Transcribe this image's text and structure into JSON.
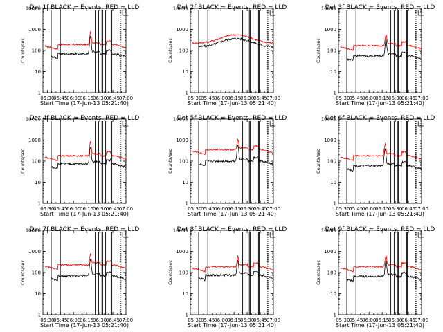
{
  "chart_data": [
    {
      "type": "line",
      "title": "Det 1f BLACK = Events, RED = LLD",
      "xlabel": "Start Time (17-Jun-13 05:21:40)",
      "ylabel": "Counts/sec",
      "yscale": "log",
      "ylim": [
        1,
        10000
      ],
      "xlim": [
        "05:25",
        "07:00"
      ],
      "x_ticks": [
        "05:30",
        "05:45",
        "06:00",
        "06:15",
        "06:30",
        "06:45",
        "07:00"
      ],
      "y_ticks": [
        "1",
        "10",
        "100",
        "1000",
        "10000"
      ],
      "colors": {
        "events": "#000000",
        "lld": "#ff0000"
      },
      "series_data": {
        "events_base": 70,
        "lld_base": 190,
        "peak_x": 0.57,
        "events_peak": 380,
        "lld_peak": 600
      },
      "shape": "flat"
    },
    {
      "type": "line",
      "title": "Det 2f BLACK = Events, RED = LLD",
      "xlabel": "Start Time (17-Jun-13 05:21:40)",
      "ylabel": "Counts/sec",
      "yscale": "log",
      "ylim": [
        1,
        10000
      ],
      "xlim": [
        "05:25",
        "07:00"
      ],
      "x_ticks": [
        "05:30",
        "05:45",
        "06:00",
        "06:15",
        "06:30",
        "06:45",
        "07:00"
      ],
      "y_ticks": [
        "1",
        "10",
        "100",
        "1000",
        "10000"
      ],
      "colors": {
        "events": "#000000",
        "lld": "#ff0000"
      },
      "series_data": {
        "events_base": 200,
        "lld_base": 300,
        "peak_x": 0.55,
        "events_peak": 450,
        "lld_peak": 700
      },
      "shape": "hump"
    },
    {
      "type": "line",
      "title": "Det 3f BLACK = Events, RED = LLD",
      "xlabel": "Start Time (17-Jun-13 05:21:40)",
      "ylabel": "Counts/sec",
      "yscale": "log",
      "ylim": [
        1,
        10000
      ],
      "xlim": [
        "05:25",
        "07:00"
      ],
      "x_ticks": [
        "05:30",
        "05:45",
        "06:00",
        "06:15",
        "06:30",
        "06:45",
        "07:00"
      ],
      "y_ticks": [
        "1",
        "10",
        "100",
        "1000",
        "10000"
      ],
      "colors": {
        "events": "#000000",
        "lld": "#ff0000"
      },
      "series_data": {
        "events_base": 55,
        "lld_base": 170,
        "peak_x": 0.57,
        "events_peak": 280,
        "lld_peak": 500
      },
      "shape": "flat"
    },
    {
      "type": "line",
      "title": "Det 4f BLACK = Events, RED = LLD",
      "xlabel": "Start Time (17-Jun-13 05:21:40)",
      "ylabel": "Counts/sec",
      "yscale": "log",
      "ylim": [
        1,
        10000
      ],
      "xlim": [
        "05:25",
        "07:00"
      ],
      "x_ticks": [
        "05:30",
        "05:45",
        "06:00",
        "06:15",
        "06:30",
        "06:45",
        "07:00"
      ],
      "y_ticks": [
        "1",
        "10",
        "100",
        "1000",
        "10000"
      ],
      "colors": {
        "events": "#000000",
        "lld": "#ff0000"
      },
      "series_data": {
        "events_base": 75,
        "lld_base": 180,
        "peak_x": 0.57,
        "events_peak": 400,
        "lld_peak": 650
      },
      "shape": "flat"
    },
    {
      "type": "line",
      "title": "Det 5f BLACK = Events, RED = LLD",
      "xlabel": "Start Time (17-Jun-13 05:21:40)",
      "ylabel": "Counts/sec",
      "yscale": "log",
      "ylim": [
        1,
        10000
      ],
      "xlim": [
        "05:25",
        "07:00"
      ],
      "x_ticks": [
        "05:30",
        "05:45",
        "06:00",
        "06:15",
        "06:30",
        "06:45",
        "07:00"
      ],
      "y_ticks": [
        "1",
        "10",
        "100",
        "1000",
        "10000"
      ],
      "colors": {
        "events": "#000000",
        "lld": "#ff0000"
      },
      "series_data": {
        "events_base": 100,
        "lld_base": 350,
        "peak_x": 0.57,
        "events_peak": 500,
        "lld_peak": 900
      },
      "shape": "flat"
    },
    {
      "type": "line",
      "title": "Det 6f BLACK = Events, RED = LLD",
      "xlabel": "Start Time (17-Jun-13 05:21:40)",
      "ylabel": "Counts/sec",
      "yscale": "log",
      "ylim": [
        1,
        10000
      ],
      "xlim": [
        "05:25",
        "07:00"
      ],
      "x_ticks": [
        "05:30",
        "05:45",
        "06:00",
        "06:15",
        "06:30",
        "06:45",
        "07:00"
      ],
      "y_ticks": [
        "1",
        "10",
        "100",
        "1000",
        "10000"
      ],
      "colors": {
        "events": "#000000",
        "lld": "#ff0000"
      },
      "series_data": {
        "events_base": 60,
        "lld_base": 180,
        "peak_x": 0.56,
        "events_peak": 350,
        "lld_peak": 600
      },
      "shape": "flat"
    },
    {
      "type": "line",
      "title": "Det 7f BLACK = Events, RED = LLD",
      "xlabel": "Start Time (17-Jun-13 05:21:40)",
      "ylabel": "Counts/sec",
      "yscale": "log",
      "ylim": [
        1,
        10000
      ],
      "xlim": [
        "05:25",
        "07:00"
      ],
      "x_ticks": [
        "05:30",
        "05:45",
        "06:00",
        "06:15",
        "06:30",
        "06:45",
        "07:00"
      ],
      "y_ticks": [
        "1",
        "10",
        "100",
        "1000",
        "10000"
      ],
      "colors": {
        "events": "#000000",
        "lld": "#ff0000"
      },
      "series_data": {
        "events_base": 70,
        "lld_base": 230,
        "peak_x": 0.57,
        "events_peak": 350,
        "lld_peak": 600
      },
      "shape": "flat"
    },
    {
      "type": "line",
      "title": "Det 8f BLACK = Events, RED = LLD",
      "xlabel": "Start Time (17-Jun-13 05:21:40)",
      "ylabel": "Counts/sec",
      "yscale": "log",
      "ylim": [
        1,
        10000
      ],
      "xlim": [
        "05:25",
        "07:00"
      ],
      "x_ticks": [
        "05:30",
        "05:45",
        "06:00",
        "06:15",
        "06:30",
        "06:45",
        "07:00"
      ],
      "y_ticks": [
        "1",
        "10",
        "100",
        "1000",
        "10000"
      ],
      "colors": {
        "events": "#000000",
        "lld": "#ff0000"
      },
      "series_data": {
        "events_base": 75,
        "lld_base": 190,
        "peak_x": 0.57,
        "events_peak": 300,
        "lld_peak": 500
      },
      "shape": "flat"
    },
    {
      "type": "line",
      "title": "Det 9f BLACK = Events, RED = LLD",
      "xlabel": "Start Time (17-Jun-13 05:21:40)",
      "ylabel": "Counts/sec",
      "yscale": "log",
      "ylim": [
        1,
        10000
      ],
      "xlim": [
        "05:25",
        "07:00"
      ],
      "x_ticks": [
        "05:30",
        "05:45",
        "06:00",
        "06:15",
        "06:30",
        "06:45",
        "07:00"
      ],
      "y_ticks": [
        "1",
        "10",
        "100",
        "1000",
        "10000"
      ],
      "colors": {
        "events": "#000000",
        "lld": "#ff0000"
      },
      "series_data": {
        "events_base": 65,
        "lld_base": 190,
        "peak_x": 0.57,
        "events_peak": 300,
        "lld_peak": 550
      },
      "shape": "flat"
    }
  ]
}
